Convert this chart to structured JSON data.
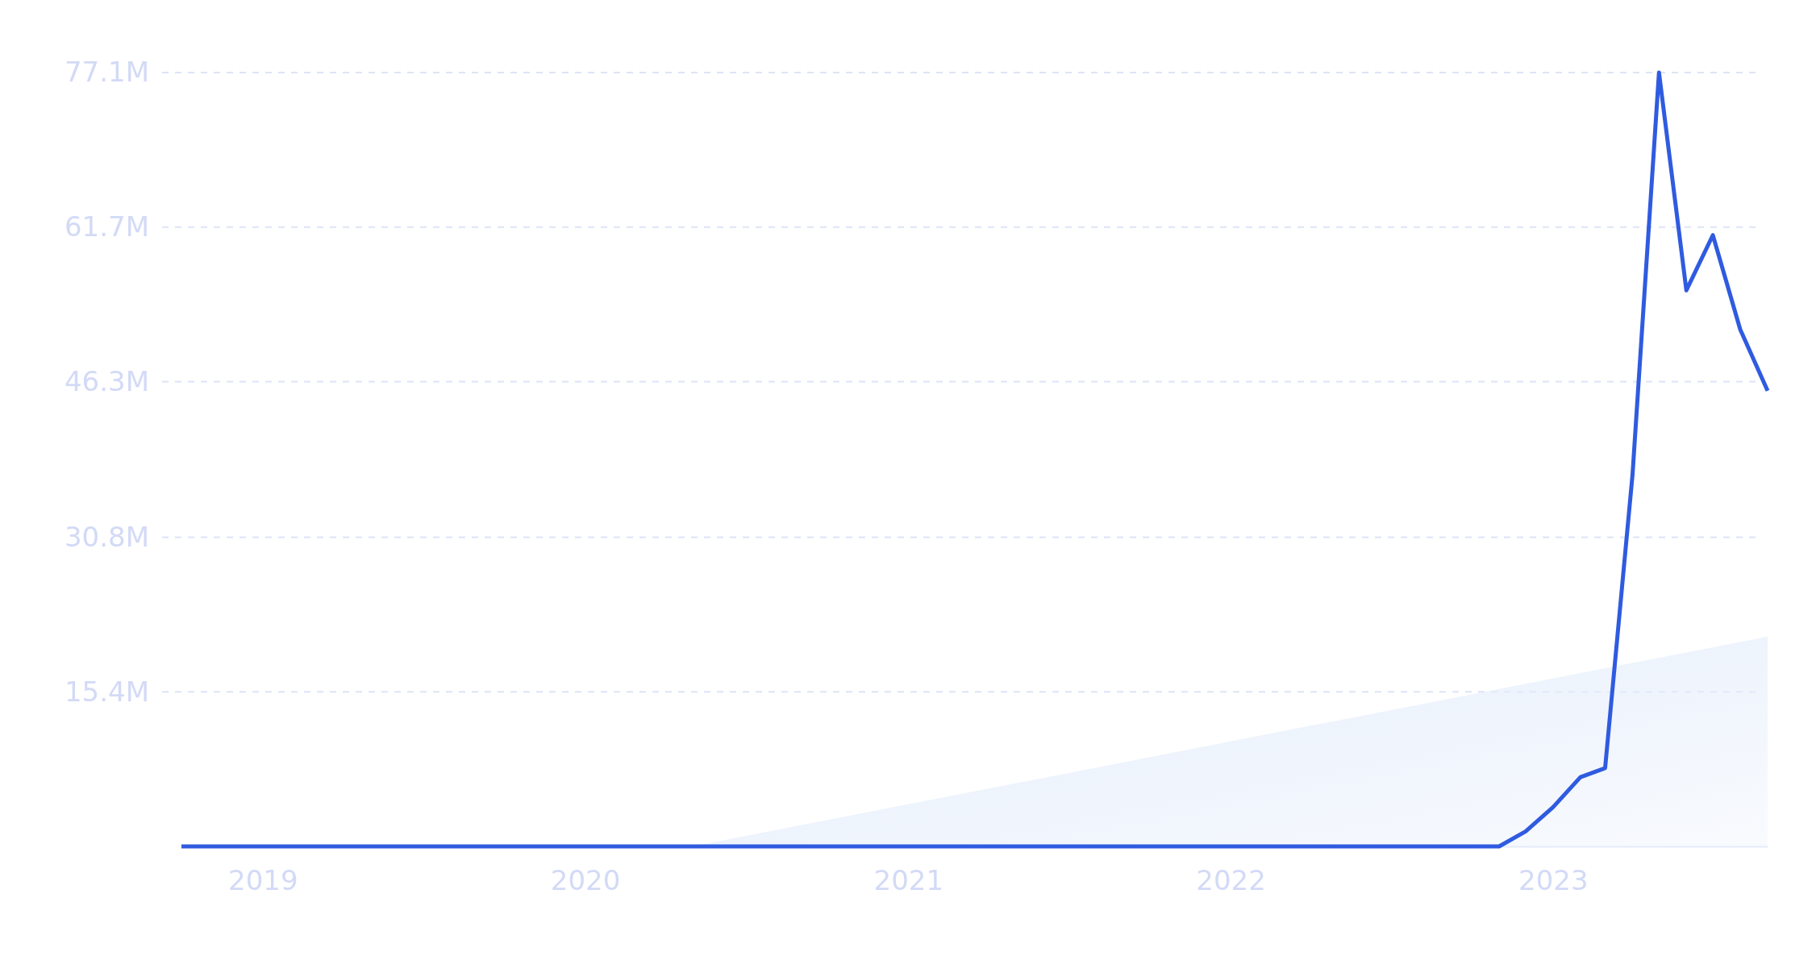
{
  "chart_data": {
    "type": "line",
    "x": [
      "2018-10",
      "2018-11",
      "2018-12",
      "2019-01",
      "2019-02",
      "2019-03",
      "2019-04",
      "2019-05",
      "2019-06",
      "2019-07",
      "2019-08",
      "2019-09",
      "2019-10",
      "2019-11",
      "2019-12",
      "2020-01",
      "2020-02",
      "2020-03",
      "2020-04",
      "2020-05",
      "2020-06",
      "2020-07",
      "2020-08",
      "2020-09",
      "2020-10",
      "2020-11",
      "2020-12",
      "2021-01",
      "2021-02",
      "2021-03",
      "2021-04",
      "2021-05",
      "2021-06",
      "2021-07",
      "2021-08",
      "2021-09",
      "2021-10",
      "2021-11",
      "2021-12",
      "2022-01",
      "2022-02",
      "2022-03",
      "2022-04",
      "2022-05",
      "2022-06",
      "2022-07",
      "2022-08",
      "2022-09",
      "2022-10",
      "2022-11",
      "2022-12",
      "2023-01",
      "2023-02",
      "2023-03",
      "2023-04",
      "2023-05",
      "2023-06",
      "2023-07",
      "2023-08",
      "2023-09"
    ],
    "series": [
      {
        "type": "area",
        "color": "#e4edfb",
        "x": [
          "2020-05",
          "2023-09"
        ],
        "values": [
          0,
          20.9
        ]
      },
      {
        "color": "#2f5be0",
        "values": [
          0,
          0,
          0,
          0,
          0,
          0,
          0,
          0,
          0,
          0,
          0,
          0,
          0,
          0,
          0,
          0,
          0,
          0,
          0,
          0,
          0,
          0,
          0,
          0,
          0,
          0,
          0,
          0,
          0,
          0,
          0,
          0,
          0,
          0,
          0,
          0,
          0,
          0,
          0,
          0,
          0,
          0,
          0,
          0,
          0,
          0,
          0,
          0,
          0,
          0,
          1.5,
          3.9,
          6.9,
          7.8,
          37.0,
          77.1,
          55.4,
          60.9,
          51.5,
          45.4
        ]
      }
    ],
    "xlim": [
      "2018-10",
      "2023-09"
    ],
    "xticks": [
      {
        "value": "2019",
        "label": "2019"
      },
      {
        "value": "2020",
        "label": "2020"
      },
      {
        "value": "2021",
        "label": "2021"
      },
      {
        "value": "2022",
        "label": "2022"
      },
      {
        "value": "2023",
        "label": "2023"
      }
    ],
    "ylim": [
      0,
      77.1
    ],
    "yticks": [
      {
        "value": 15.4,
        "label": "15.4M"
      },
      {
        "value": 30.8,
        "label": "30.8M"
      },
      {
        "value": 46.3,
        "label": "46.3M"
      },
      {
        "value": 61.7,
        "label": "61.7M"
      },
      {
        "value": 77.1,
        "label": "77.1M"
      }
    ],
    "grid": "y",
    "line_style": "solid",
    "marker": "none"
  }
}
